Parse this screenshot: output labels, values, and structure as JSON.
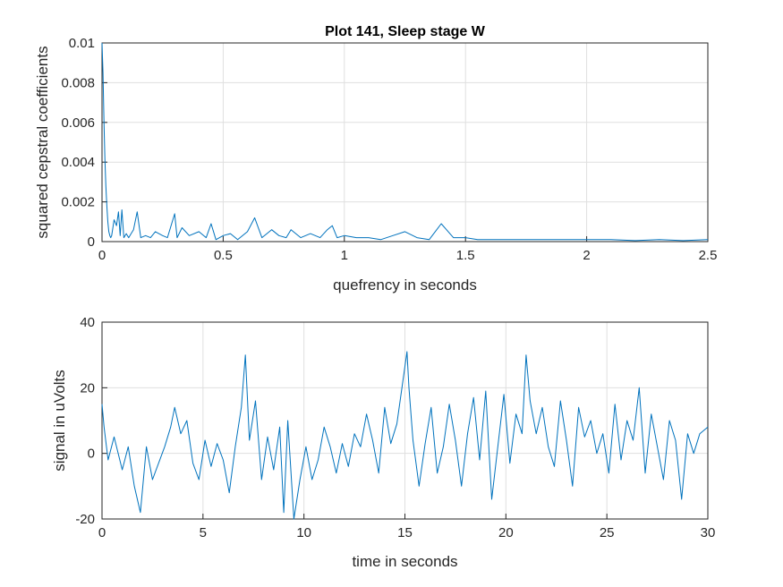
{
  "colors": {
    "series": "#0072BD",
    "grid": "#dfdfdf",
    "axis": "#262626",
    "background": "#ffffff"
  },
  "chart_data": [
    {
      "type": "line",
      "title": "Plot 141, Sleep stage W",
      "xlabel": "quefrency in seconds",
      "ylabel": "squared cepstral coefficients",
      "xlim": [
        0,
        2.5
      ],
      "ylim": [
        0,
        0.01
      ],
      "xticks": [
        "0",
        "0.5",
        "1",
        "1.5",
        "2",
        "2.5"
      ],
      "yticks": [
        "0",
        "0.002",
        "0.004",
        "0.006",
        "0.008",
        "0.01"
      ],
      "grid": true,
      "legend": "none",
      "series": [
        {
          "x": [
            0,
            0.004,
            0.008,
            0.012,
            0.016,
            0.02,
            0.024,
            0.028,
            0.032,
            0.036,
            0.04,
            0.05,
            0.06,
            0.068,
            0.075,
            0.082,
            0.09,
            0.1,
            0.11,
            0.12,
            0.13,
            0.145,
            0.16,
            0.18,
            0.2,
            0.22,
            0.25,
            0.27,
            0.3,
            0.31,
            0.33,
            0.36,
            0.4,
            0.43,
            0.45,
            0.47,
            0.5,
            0.53,
            0.56,
            0.6,
            0.63,
            0.66,
            0.7,
            0.73,
            0.76,
            0.78,
            0.82,
            0.86,
            0.9,
            0.93,
            0.95,
            0.97,
            1.0,
            1.05,
            1.1,
            1.15,
            1.2,
            1.25,
            1.3,
            1.35,
            1.4,
            1.45,
            1.5,
            1.55,
            1.6,
            1.7,
            1.8,
            1.9,
            2.0,
            2.1,
            2.2,
            2.3,
            2.4,
            2.5
          ],
          "y": [
            0.01,
            0.0085,
            0.006,
            0.0042,
            0.0028,
            0.0018,
            0.001,
            0.0005,
            0.0003,
            0.0002,
            0.0003,
            0.0011,
            0.0008,
            0.0015,
            0.0003,
            0.0016,
            0.0002,
            0.0004,
            0.0002,
            0.0004,
            0.0006,
            0.0015,
            0.0002,
            0.0003,
            0.0002,
            0.0005,
            0.0003,
            0.0002,
            0.0014,
            0.0002,
            0.0007,
            0.0003,
            0.0005,
            0.0002,
            0.0009,
            0.0001,
            0.0003,
            0.0004,
            0.0001,
            0.0005,
            0.0012,
            0.0002,
            0.0006,
            0.0003,
            0.0002,
            0.0006,
            0.0002,
            0.0004,
            0.0002,
            0.0006,
            0.0008,
            0.0002,
            0.0003,
            0.0002,
            0.0002,
            0.0001,
            0.0003,
            0.0005,
            0.0002,
            0.0001,
            0.0009,
            0.0002,
            0.0002,
            0.0001,
            0.0001,
            0.0001,
            0.0001,
            0.0001,
            0.0001,
            0.0001,
            5e-05,
            0.0001,
            5e-05,
            0.0001
          ]
        }
      ]
    },
    {
      "type": "line",
      "title": "",
      "xlabel": "time in seconds",
      "ylabel": "signal in uVolts",
      "xlim": [
        0,
        30
      ],
      "ylim": [
        -20,
        40
      ],
      "xticks": [
        "0",
        "5",
        "10",
        "15",
        "20",
        "25",
        "30"
      ],
      "yticks": [
        "-20",
        "0",
        "20",
        "40"
      ],
      "grid": true,
      "legend": "none",
      "series": [
        {
          "x": [
            0,
            0.1,
            0.3,
            0.6,
            1.0,
            1.3,
            1.6,
            1.9,
            2.2,
            2.5,
            2.8,
            3.1,
            3.4,
            3.6,
            3.9,
            4.2,
            4.5,
            4.8,
            5.1,
            5.4,
            5.7,
            6.0,
            6.3,
            6.6,
            6.9,
            7.1,
            7.3,
            7.6,
            7.9,
            8.2,
            8.5,
            8.8,
            9.0,
            9.2,
            9.5,
            9.8,
            10.1,
            10.4,
            10.7,
            11.0,
            11.3,
            11.6,
            11.9,
            12.2,
            12.5,
            12.8,
            13.1,
            13.4,
            13.7,
            14.0,
            14.3,
            14.6,
            14.9,
            15.1,
            15.2,
            15.4,
            15.7,
            16.0,
            16.3,
            16.6,
            16.9,
            17.2,
            17.5,
            17.8,
            18.1,
            18.4,
            18.7,
            19.0,
            19.3,
            19.6,
            19.9,
            20.2,
            20.5,
            20.8,
            21.0,
            21.2,
            21.5,
            21.8,
            22.1,
            22.4,
            22.7,
            23.0,
            23.3,
            23.6,
            23.9,
            24.2,
            24.5,
            24.8,
            25.1,
            25.4,
            25.7,
            26.0,
            26.3,
            26.6,
            26.9,
            27.2,
            27.5,
            27.8,
            28.1,
            28.4,
            28.7,
            29.0,
            29.3,
            29.6,
            30.0
          ],
          "y": [
            15,
            8,
            -2,
            5,
            -5,
            2,
            -10,
            -18,
            2,
            -8,
            -3,
            2,
            8,
            14,
            6,
            10,
            -3,
            -8,
            4,
            -4,
            3,
            -2,
            -12,
            2,
            14,
            30,
            4,
            16,
            -8,
            5,
            -5,
            8,
            -18,
            10,
            -20,
            -8,
            2,
            -8,
            -2,
            8,
            2,
            -6,
            3,
            -4,
            6,
            2,
            12,
            4,
            -6,
            14,
            3,
            9,
            22,
            31,
            20,
            4,
            -10,
            3,
            14,
            -6,
            2,
            15,
            4,
            -10,
            6,
            17,
            -2,
            19,
            -14,
            2,
            18,
            -3,
            12,
            6,
            30,
            16,
            6,
            14,
            2,
            -4,
            16,
            4,
            -10,
            14,
            5,
            10,
            0,
            6,
            -6,
            15,
            -2,
            10,
            4,
            20,
            -6,
            12,
            2,
            -8,
            10,
            4,
            -14,
            6,
            0,
            6,
            8
          ]
        }
      ]
    }
  ]
}
